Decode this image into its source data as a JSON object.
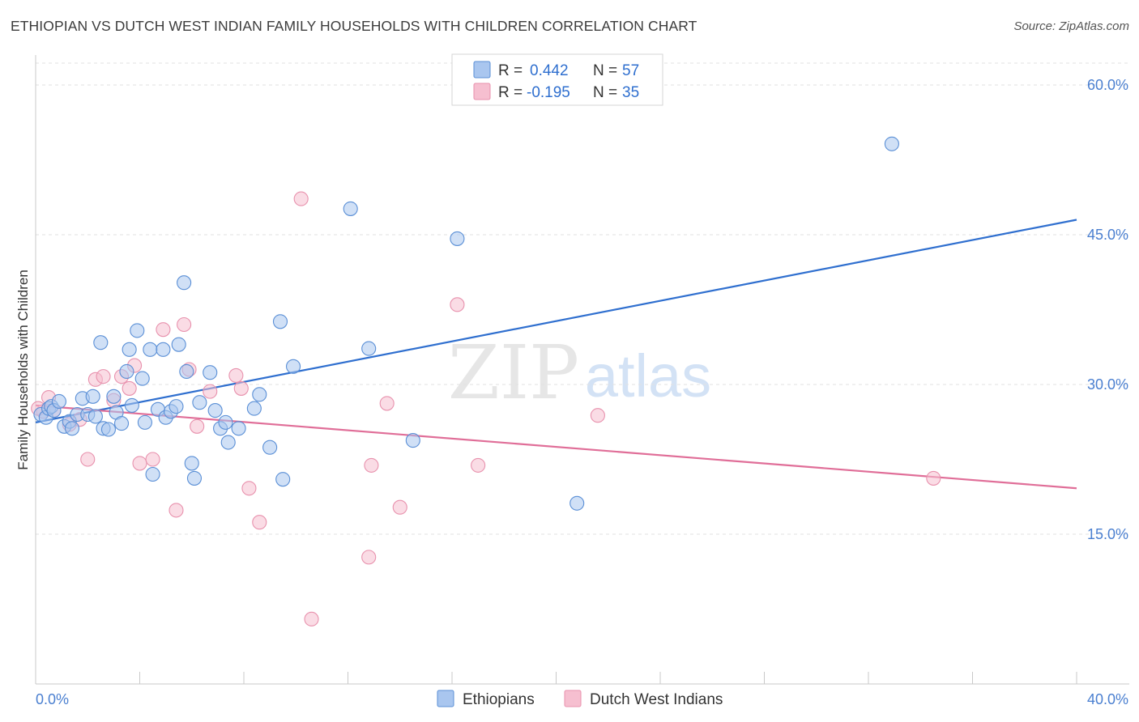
{
  "title": "ETHIOPIAN VS DUTCH WEST INDIAN FAMILY HOUSEHOLDS WITH CHILDREN CORRELATION CHART",
  "source": "Source: ZipAtlas.com",
  "watermark": {
    "zip": "ZIP",
    "atlas": "atlas"
  },
  "colors": {
    "blue_fill": "#a9c6ef",
    "blue_stroke": "#5a8fd6",
    "blue_line": "#2f6fcf",
    "pink_fill": "#f6bfd0",
    "pink_stroke": "#e891ad",
    "pink_line": "#e06e98",
    "grid": "#e2e2e2",
    "tick_text": "#4a7fd0"
  },
  "legend_top": {
    "rows": [
      {
        "r_label": "R =",
        "r_value": "0.442",
        "n_label": "N =",
        "n_value": "57"
      },
      {
        "r_label": "R =",
        "r_value": "-0.195",
        "n_label": "N =",
        "n_value": "35"
      }
    ]
  },
  "chart_data": {
    "type": "scatter",
    "title": "ETHIOPIAN VS DUTCH WEST INDIAN FAMILY HOUSEHOLDS WITH CHILDREN CORRELATION CHART",
    "xlabel": "",
    "ylabel": "Family Households with Children",
    "xlim": [
      0,
      40
    ],
    "ylim": [
      0,
      63
    ],
    "x_tick_labels": [
      "0.0%",
      "40.0%"
    ],
    "y_ticks": [
      15,
      30,
      45,
      60
    ],
    "y_tick_labels": [
      "15.0%",
      "30.0%",
      "45.0%",
      "60.0%"
    ],
    "legend_position": "bottom",
    "series": [
      {
        "name": "Ethiopians",
        "R": 0.442,
        "N": 57,
        "trend": {
          "x": [
            0,
            40
          ],
          "y": [
            26.2,
            46.5
          ]
        },
        "points": [
          [
            0.2,
            27.0
          ],
          [
            0.4,
            26.7
          ],
          [
            0.5,
            27.6
          ],
          [
            0.6,
            27.8
          ],
          [
            0.7,
            27.4
          ],
          [
            0.9,
            28.3
          ],
          [
            1.1,
            25.8
          ],
          [
            1.3,
            26.3
          ],
          [
            1.4,
            25.6
          ],
          [
            1.6,
            27.0
          ],
          [
            1.8,
            28.6
          ],
          [
            2.0,
            27.0
          ],
          [
            2.2,
            28.8
          ],
          [
            2.3,
            26.8
          ],
          [
            2.5,
            34.2
          ],
          [
            2.6,
            25.6
          ],
          [
            2.8,
            25.5
          ],
          [
            3.0,
            28.8
          ],
          [
            3.1,
            27.2
          ],
          [
            3.3,
            26.1
          ],
          [
            3.5,
            31.3
          ],
          [
            3.6,
            33.5
          ],
          [
            3.7,
            27.9
          ],
          [
            3.9,
            35.4
          ],
          [
            4.1,
            30.6
          ],
          [
            4.2,
            26.2
          ],
          [
            4.4,
            33.5
          ],
          [
            4.5,
            21.0
          ],
          [
            4.7,
            27.5
          ],
          [
            4.9,
            33.5
          ],
          [
            5.0,
            26.7
          ],
          [
            5.2,
            27.3
          ],
          [
            5.4,
            27.8
          ],
          [
            5.5,
            34.0
          ],
          [
            5.7,
            40.2
          ],
          [
            5.8,
            31.3
          ],
          [
            6.0,
            22.1
          ],
          [
            6.1,
            20.6
          ],
          [
            6.3,
            28.2
          ],
          [
            6.7,
            31.2
          ],
          [
            6.9,
            27.4
          ],
          [
            7.1,
            25.6
          ],
          [
            7.3,
            26.2
          ],
          [
            7.4,
            24.2
          ],
          [
            7.8,
            25.6
          ],
          [
            8.4,
            27.6
          ],
          [
            8.6,
            29.0
          ],
          [
            9.0,
            23.7
          ],
          [
            9.4,
            36.3
          ],
          [
            9.5,
            20.5
          ],
          [
            9.9,
            31.8
          ],
          [
            12.1,
            47.6
          ],
          [
            12.8,
            33.6
          ],
          [
            14.5,
            24.4
          ],
          [
            16.2,
            44.6
          ],
          [
            20.8,
            18.1
          ],
          [
            32.9,
            54.1
          ]
        ]
      },
      {
        "name": "Dutch West Indians",
        "R": -0.195,
        "N": 35,
        "trend": {
          "x": [
            0,
            40
          ],
          "y": [
            27.9,
            19.6
          ]
        },
        "points": [
          [
            0.3,
            27.3
          ],
          [
            0.5,
            28.7
          ],
          [
            0.7,
            27.4
          ],
          [
            1.3,
            26.0
          ],
          [
            1.7,
            26.5
          ],
          [
            2.0,
            22.5
          ],
          [
            2.3,
            30.5
          ],
          [
            2.6,
            30.8
          ],
          [
            3.0,
            28.4
          ],
          [
            3.3,
            30.8
          ],
          [
            3.6,
            29.6
          ],
          [
            3.8,
            31.9
          ],
          [
            4.0,
            22.1
          ],
          [
            4.5,
            22.5
          ],
          [
            4.9,
            35.5
          ],
          [
            5.4,
            17.4
          ],
          [
            5.7,
            36.0
          ],
          [
            5.9,
            31.5
          ],
          [
            6.2,
            25.8
          ],
          [
            6.7,
            29.3
          ],
          [
            7.7,
            30.9
          ],
          [
            7.9,
            29.6
          ],
          [
            8.2,
            19.6
          ],
          [
            8.6,
            16.2
          ],
          [
            10.2,
            48.6
          ],
          [
            10.6,
            6.5
          ],
          [
            12.8,
            12.7
          ],
          [
            12.9,
            21.9
          ],
          [
            13.5,
            28.1
          ],
          [
            14.0,
            17.7
          ],
          [
            16.2,
            38.0
          ],
          [
            17.0,
            21.9
          ],
          [
            21.6,
            26.9
          ],
          [
            34.5,
            20.6
          ],
          [
            0.1,
            27.6
          ]
        ]
      }
    ]
  }
}
